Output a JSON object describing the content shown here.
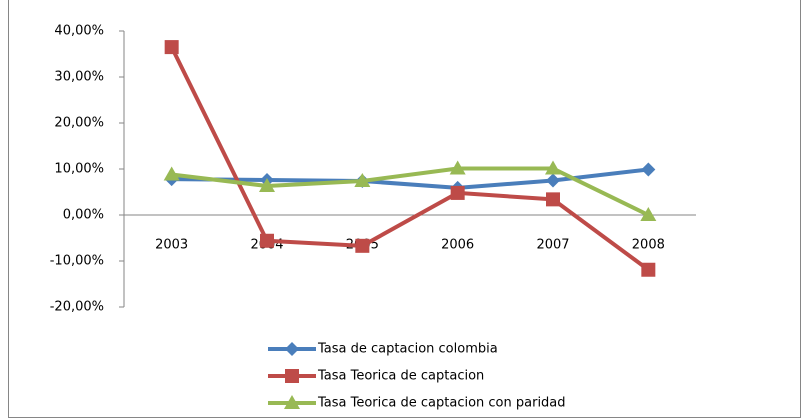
{
  "chart_data": {
    "type": "line",
    "categories": [
      "2003",
      "2004",
      "2005",
      "2006",
      "2007",
      "2008"
    ],
    "series": [
      {
        "name": "Tasa de captacion colombia",
        "color": "#4a7ebb",
        "marker": "diamond",
        "values": [
          7.8,
          7.6,
          7.4,
          5.9,
          7.5,
          9.9
        ]
      },
      {
        "name": "Tasa Teorica de captacion",
        "color": "#be4b48",
        "marker": "square",
        "values": [
          36.5,
          -5.6,
          -6.7,
          4.8,
          3.4,
          -11.9
        ]
      },
      {
        "name": "Tasa Teorica de captacion con paridad",
        "color": "#98b954",
        "marker": "triangle",
        "values": [
          8.8,
          6.3,
          7.4,
          10.1,
          10.1,
          0
        ]
      }
    ],
    "ylim": [
      -20,
      40
    ],
    "yticks": [
      {
        "value": -20,
        "label": "-20,00%"
      },
      {
        "value": -10,
        "label": "-10,00%"
      },
      {
        "value": 0,
        "label": "0,00%"
      },
      {
        "value": 10,
        "label": "10,00%"
      },
      {
        "value": 20,
        "label": "20,00%"
      },
      {
        "value": 30,
        "label": "30,00%"
      },
      {
        "value": 40,
        "label": "40,00%"
      }
    ],
    "grid": false,
    "legend": "bottom"
  }
}
